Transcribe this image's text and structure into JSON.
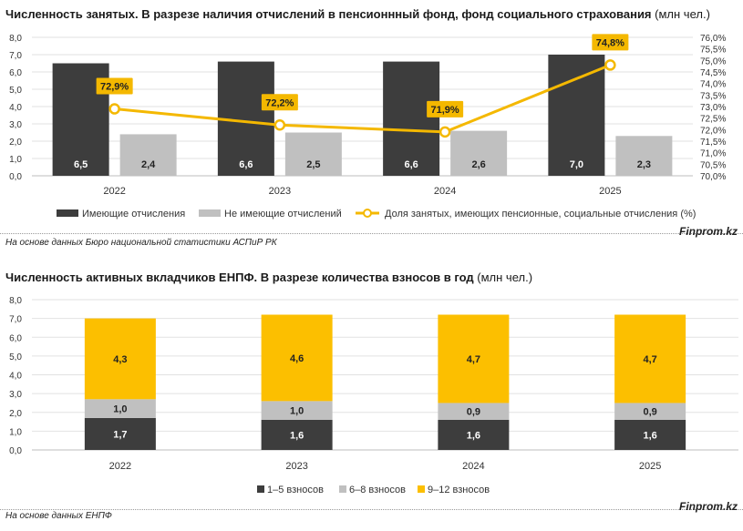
{
  "chart_data": [
    {
      "type": "bar",
      "title": "Численность занятых. В разрезе наличия отчислений в пенсионнный фонд, фонд социального страхования",
      "unit": "(млн чел.)",
      "categories": [
        "2022",
        "2023",
        "2024",
        "2025"
      ],
      "series": [
        {
          "name": "Имеющие отчисления",
          "kind": "bar",
          "color": "#3d3d3d",
          "values": [
            6.5,
            6.6,
            6.6,
            7.0
          ],
          "labels": [
            "6,5",
            "6,6",
            "6,6",
            "7,0"
          ]
        },
        {
          "name": "Не имеющие отчислений",
          "kind": "bar",
          "color": "#c0c0c0",
          "values": [
            2.4,
            2.5,
            2.6,
            2.3
          ],
          "labels": [
            "2,4",
            "2,5",
            "2,6",
            "2,3"
          ]
        },
        {
          "name": "Доля занятых, имеющих пенсионные, социальные отчисления (%)",
          "kind": "line",
          "axis": "right",
          "color": "#f4b800",
          "values": [
            72.9,
            72.2,
            71.9,
            74.8
          ],
          "labels": [
            "72,9%",
            "72,2%",
            "71,9%",
            "74,8%"
          ]
        }
      ],
      "y_left": {
        "min": 0,
        "max": 8,
        "ticks": [
          "0,0",
          "1,0",
          "2,0",
          "3,0",
          "4,0",
          "5,0",
          "6,0",
          "7,0",
          "8,0"
        ]
      },
      "y_right": {
        "min": 70,
        "max": 76,
        "ticks": [
          "70,0%",
          "70,5%",
          "71,0%",
          "71,5%",
          "72,0%",
          "72,5%",
          "73,0%",
          "73,5%",
          "74,0%",
          "74,5%",
          "75,0%",
          "75,5%",
          "76,0%"
        ]
      },
      "gridlines": true,
      "legend_position": "bottom"
    },
    {
      "type": "bar",
      "stacked": true,
      "title": "Численность активных вкладчиков ЕНПФ. В разрезе количества взносов в год",
      "unit": "(млн чел.)",
      "categories": [
        "2022",
        "2023",
        "2024",
        "2025"
      ],
      "series": [
        {
          "name": "1–5 взносов",
          "color": "#3d3d3d",
          "values": [
            1.7,
            1.6,
            1.6,
            1.6
          ],
          "labels": [
            "1,7",
            "1,6",
            "1,6",
            "1,6"
          ]
        },
        {
          "name": "6–8 взносов",
          "color": "#c0c0c0",
          "values": [
            1.0,
            1.0,
            0.9,
            0.9
          ],
          "labels": [
            "1,0",
            "1,0",
            "0,9",
            "0,9"
          ]
        },
        {
          "name": "9–12 взносов",
          "color": "#fcbf00",
          "values": [
            4.3,
            4.6,
            4.7,
            4.7
          ],
          "labels": [
            "4,3",
            "4,6",
            "4,7",
            "4,7"
          ]
        }
      ],
      "y_left": {
        "min": 0,
        "max": 8,
        "ticks": [
          "0,0",
          "1,0",
          "2,0",
          "3,0",
          "4,0",
          "5,0",
          "6,0",
          "7,0",
          "8,0"
        ]
      },
      "gridlines": true,
      "legend_position": "bottom"
    }
  ],
  "footer": [
    {
      "source": "На основе данных Бюро национальной статистики АСПиР РК",
      "brand": "Finprom.kz"
    },
    {
      "source": "На основе данных ЕНПФ",
      "brand": "Finprom.kz"
    }
  ]
}
